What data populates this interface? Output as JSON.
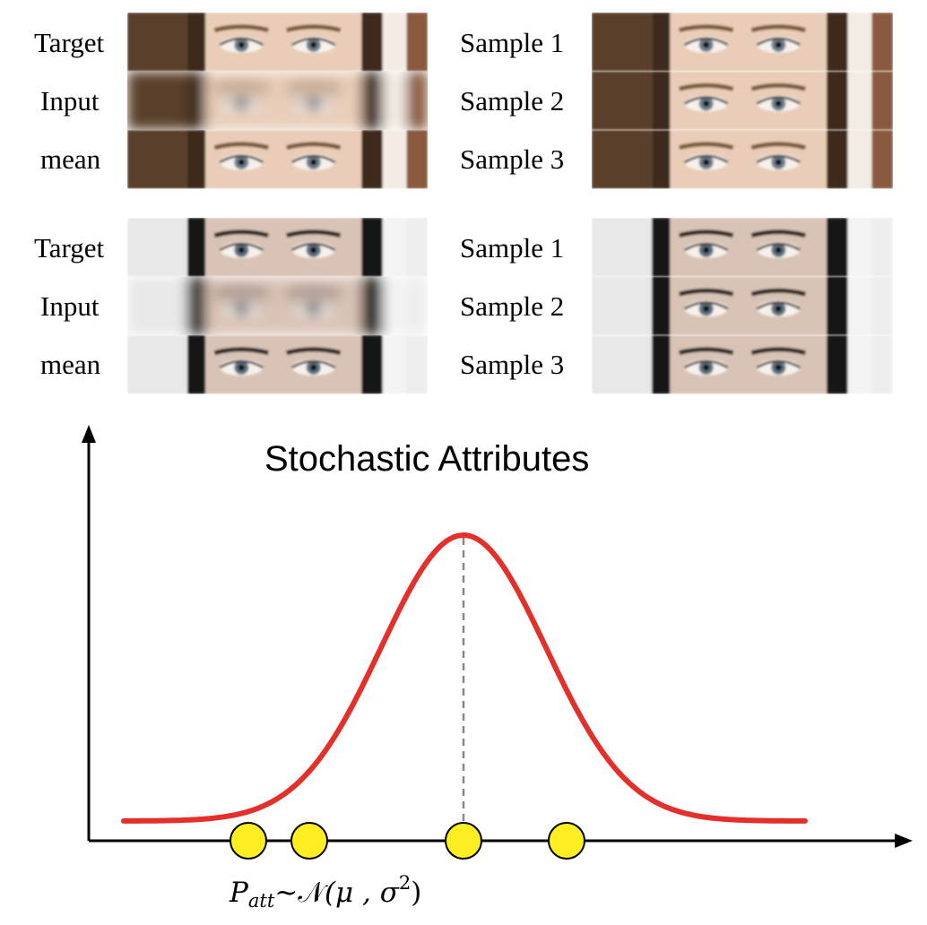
{
  "groups": [
    {
      "left_labels": [
        "Target",
        "Input",
        "mean"
      ],
      "right_labels": [
        "Sample 1",
        "Sample 2",
        "Sample 3"
      ],
      "colors": {
        "skin": "#e9cdb8",
        "hair": "#3d2a1e",
        "bg_left": "#5a3f2c",
        "bg_right": "#8a5a40",
        "light": "#f3ece4",
        "iris": "#6f7f8c",
        "brow": "#7a5a3a"
      }
    },
    {
      "left_labels": [
        "Target",
        "Input",
        "mean"
      ],
      "right_labels": [
        "Sample 1",
        "Sample 2",
        "Sample 3"
      ],
      "colors": {
        "skin": "#d9c3b6",
        "hair": "#121212",
        "bg_left": "#e8e8e8",
        "bg_right": "#eeeeee",
        "light": "#f3f3f3",
        "iris": "#5e7180",
        "brow": "#2a2220"
      }
    }
  ],
  "plot": {
    "title": "Stochastic Attributes",
    "formula": {
      "p": "P",
      "sub": "att",
      "tilde": "~",
      "n": "𝒩",
      "args": "(μ , σ",
      "exp": "2",
      "close": ")"
    },
    "curve_color": "#e3302a",
    "dot_color": "#ffee22",
    "dashed_color": "#888888"
  }
}
